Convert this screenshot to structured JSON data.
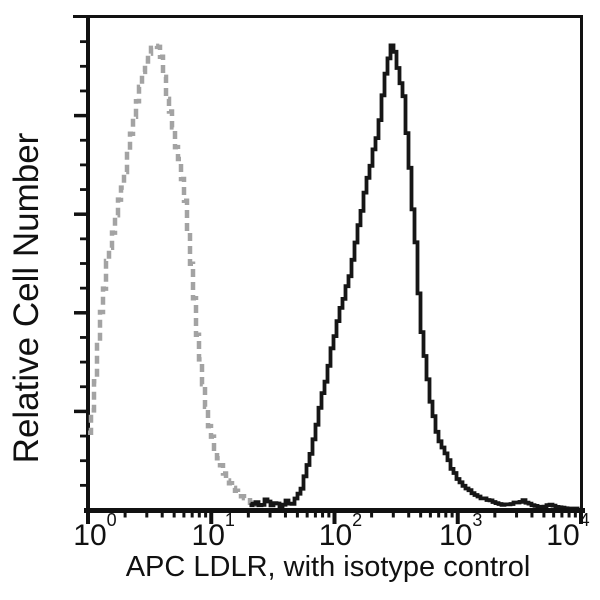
{
  "chart_data": {
    "type": "line",
    "subtype": "flow-cytometry-overlay-histogram",
    "title": "",
    "xlabel": "APC LDLR, with isotype control",
    "ylabel": "Relative Cell Number",
    "x_scale": "log10",
    "x_range_exponents": [
      0,
      4
    ],
    "x_tick_base": "10",
    "x_tick_exponents": [
      "0",
      "1",
      "2",
      "3",
      "4"
    ],
    "x_minor_tick_mantissas": [
      2,
      3,
      4,
      5,
      6,
      7,
      8,
      9
    ],
    "y_axis": {
      "tick_labels_shown": false,
      "major_divisions": 5,
      "minor_per_major": 4
    },
    "grid": false,
    "legend": "none",
    "axis_color": "#111111",
    "background_color": "#ffffff",
    "series": [
      {
        "name": "isotype control",
        "color": "#a3a3a3",
        "line_style": "dashed",
        "line_width": 4.5,
        "peak_log_x": 0.53,
        "peak_x_value": 3.4,
        "peak_height_pct": 94.9,
        "points": [
          [
            0.0,
            16.2
          ],
          [
            0.02,
            18.3
          ],
          [
            0.03,
            22.3
          ],
          [
            0.06,
            28.4
          ],
          [
            0.08,
            36.5
          ],
          [
            0.11,
            42.6
          ],
          [
            0.14,
            49.7
          ],
          [
            0.18,
            54.8
          ],
          [
            0.22,
            59.8
          ],
          [
            0.26,
            64.9
          ],
          [
            0.31,
            72.0
          ],
          [
            0.36,
            79.1
          ],
          [
            0.41,
            84.2
          ],
          [
            0.45,
            90.3
          ],
          [
            0.49,
            93.7
          ],
          [
            0.53,
            94.9
          ],
          [
            0.57,
            93.3
          ],
          [
            0.6,
            89.2
          ],
          [
            0.64,
            83.2
          ],
          [
            0.68,
            78.1
          ],
          [
            0.73,
            71.0
          ],
          [
            0.77,
            63.9
          ],
          [
            0.81,
            54.8
          ],
          [
            0.85,
            42.6
          ],
          [
            0.88,
            33.5
          ],
          [
            0.93,
            24.3
          ],
          [
            0.97,
            17.2
          ],
          [
            1.03,
            11.2
          ],
          [
            1.09,
            7.7
          ],
          [
            1.15,
            5.1
          ],
          [
            1.23,
            2.8
          ],
          [
            1.31,
            1.4
          ],
          [
            1.38,
            0.4
          ]
        ]
      },
      {
        "name": "APC LDLR",
        "color": "#161616",
        "line_style": "solid",
        "line_width": 3.8,
        "peak_log_x": 2.45,
        "peak_x_value": 282,
        "peak_height_pct": 94.9,
        "points": [
          [
            1.31,
            1.0
          ],
          [
            1.36,
            2.0
          ],
          [
            1.4,
            0.8
          ],
          [
            1.44,
            2.4
          ],
          [
            1.48,
            1.0
          ],
          [
            1.52,
            1.6
          ],
          [
            1.56,
            0.6
          ],
          [
            1.6,
            2.0
          ],
          [
            1.64,
            1.2
          ],
          [
            1.68,
            2.6
          ],
          [
            1.72,
            4.1
          ],
          [
            1.76,
            8.1
          ],
          [
            1.8,
            12.2
          ],
          [
            1.84,
            17.2
          ],
          [
            1.88,
            22.3
          ],
          [
            1.92,
            26.8
          ],
          [
            1.96,
            31.4
          ],
          [
            2.0,
            36.5
          ],
          [
            2.04,
            41.6
          ],
          [
            2.09,
            45.0
          ],
          [
            2.13,
            49.1
          ],
          [
            2.17,
            54.8
          ],
          [
            2.21,
            59.8
          ],
          [
            2.25,
            65.9
          ],
          [
            2.29,
            71.0
          ],
          [
            2.33,
            76.1
          ],
          [
            2.37,
            81.5
          ],
          [
            2.4,
            87.2
          ],
          [
            2.43,
            91.3
          ],
          [
            2.45,
            94.9
          ],
          [
            2.48,
            93.3
          ],
          [
            2.5,
            90.9
          ],
          [
            2.52,
            87.2
          ],
          [
            2.55,
            84.2
          ],
          [
            2.57,
            77.1
          ],
          [
            2.6,
            70.0
          ],
          [
            2.62,
            62.9
          ],
          [
            2.65,
            53.8
          ],
          [
            2.67,
            44.6
          ],
          [
            2.69,
            36.5
          ],
          [
            2.73,
            29.4
          ],
          [
            2.76,
            23.9
          ],
          [
            2.79,
            19.9
          ],
          [
            2.82,
            16.2
          ],
          [
            2.86,
            13.2
          ],
          [
            2.9,
            10.5
          ],
          [
            2.94,
            8.5
          ],
          [
            2.98,
            6.7
          ],
          [
            3.02,
            5.3
          ],
          [
            3.07,
            4.1
          ],
          [
            3.12,
            3.2
          ],
          [
            3.18,
            2.4
          ],
          [
            3.25,
            1.8
          ],
          [
            3.31,
            1.4
          ],
          [
            3.38,
            1.0
          ],
          [
            3.47,
            1.4
          ],
          [
            3.53,
            2.0
          ],
          [
            3.59,
            1.0
          ],
          [
            3.65,
            0.6
          ],
          [
            3.73,
            1.0
          ],
          [
            3.79,
            0.6
          ],
          [
            3.87,
            0.4
          ],
          [
            3.95,
            0.2
          ],
          [
            4.0,
            0.2
          ]
        ]
      }
    ]
  }
}
